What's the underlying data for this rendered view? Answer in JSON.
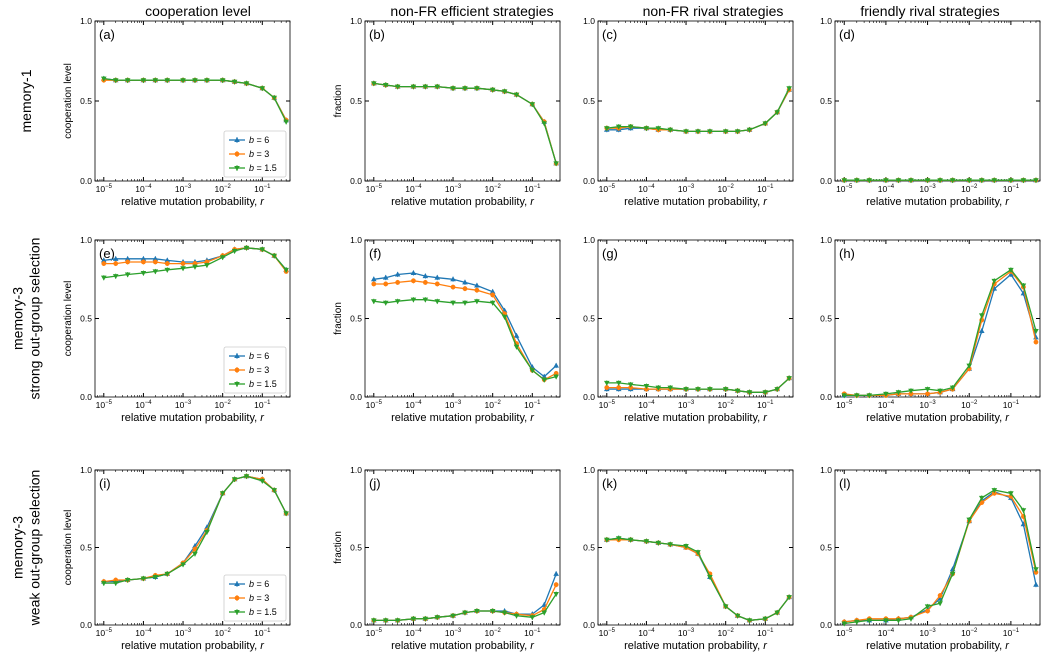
{
  "column_titles": [
    "cooperation level",
    "non-FR efficient strategies",
    "non-FR rival strategies",
    "friendly rival strategies"
  ],
  "row_titles": [
    [
      "memory-1"
    ],
    [
      "memory-3",
      "strong out-group selection"
    ],
    [
      "memory-3",
      "weak out-group selection"
    ]
  ],
  "colors": {
    "b6": "#1f77b4",
    "b3": "#ff7f0e",
    "b15": "#2ca02c"
  },
  "chart_data": {
    "type": "line",
    "xscale": "log",
    "xlabel": "relative mutation probability, r",
    "x": [
      1e-05,
      2e-05,
      4e-05,
      0.0001,
      0.0002,
      0.0004,
      0.001,
      0.002,
      0.004,
      0.01,
      0.02,
      0.04,
      0.1,
      0.2,
      0.4
    ],
    "xlim": [
      6e-06,
      0.5
    ],
    "ylim": [
      0,
      1
    ],
    "xticklabels": [
      "10^-5",
      "10^-4",
      "10^-3",
      "10^-2",
      "10^-1"
    ],
    "yticklabels": [
      "0.0",
      "0.5",
      "1.0"
    ],
    "legend_placement": "lower-right",
    "legend": [
      "b = 6",
      "b = 3",
      "b = 1.5"
    ],
    "panels": [
      {
        "label": "(a)",
        "ylabel": "cooperation level",
        "legend": true,
        "series": [
          {
            "name": "b = 6",
            "values": [
              0.64,
              0.63,
              0.63,
              0.63,
              0.63,
              0.63,
              0.63,
              0.63,
              0.63,
              0.63,
              0.62,
              0.61,
              0.58,
              0.52,
              0.38
            ]
          },
          {
            "name": "b = 3",
            "values": [
              0.63,
              0.63,
              0.63,
              0.63,
              0.63,
              0.63,
              0.63,
              0.63,
              0.63,
              0.63,
              0.62,
              0.61,
              0.58,
              0.52,
              0.38
            ]
          },
          {
            "name": "b = 1.5",
            "values": [
              0.64,
              0.63,
              0.63,
              0.63,
              0.63,
              0.63,
              0.63,
              0.63,
              0.63,
              0.63,
              0.62,
              0.61,
              0.58,
              0.52,
              0.37
            ]
          }
        ]
      },
      {
        "label": "(b)",
        "ylabel": "fraction",
        "series": [
          {
            "name": "b = 6",
            "values": [
              0.61,
              0.6,
              0.59,
              0.59,
              0.59,
              0.59,
              0.58,
              0.58,
              0.58,
              0.57,
              0.56,
              0.54,
              0.48,
              0.37,
              0.11
            ]
          },
          {
            "name": "b = 3",
            "values": [
              0.61,
              0.6,
              0.59,
              0.59,
              0.59,
              0.59,
              0.58,
              0.58,
              0.58,
              0.57,
              0.56,
              0.54,
              0.48,
              0.37,
              0.11
            ]
          },
          {
            "name": "b = 1.5",
            "values": [
              0.61,
              0.6,
              0.59,
              0.59,
              0.59,
              0.59,
              0.58,
              0.58,
              0.58,
              0.57,
              0.56,
              0.54,
              0.48,
              0.36,
              0.11
            ]
          }
        ]
      },
      {
        "label": "(c)",
        "ylabel": "",
        "series": [
          {
            "name": "b = 6",
            "values": [
              0.32,
              0.32,
              0.33,
              0.33,
              0.32,
              0.32,
              0.31,
              0.31,
              0.31,
              0.31,
              0.31,
              0.32,
              0.36,
              0.43,
              0.57
            ]
          },
          {
            "name": "b = 3",
            "values": [
              0.33,
              0.33,
              0.34,
              0.33,
              0.32,
              0.32,
              0.31,
              0.31,
              0.31,
              0.31,
              0.31,
              0.32,
              0.36,
              0.43,
              0.57
            ]
          },
          {
            "name": "b = 1.5",
            "values": [
              0.33,
              0.34,
              0.34,
              0.33,
              0.33,
              0.32,
              0.31,
              0.31,
              0.31,
              0.31,
              0.31,
              0.32,
              0.36,
              0.43,
              0.58
            ]
          }
        ]
      },
      {
        "label": "(d)",
        "ylabel": "",
        "series": [
          {
            "name": "b = 6",
            "values": [
              0.005,
              0.005,
              0.005,
              0.005,
              0.005,
              0.005,
              0.005,
              0.005,
              0.005,
              0.005,
              0.005,
              0.005,
              0.005,
              0.005,
              0.005
            ]
          },
          {
            "name": "b = 3",
            "values": [
              0.005,
              0.005,
              0.005,
              0.005,
              0.005,
              0.005,
              0.005,
              0.005,
              0.005,
              0.005,
              0.005,
              0.005,
              0.005,
              0.005,
              0.005
            ]
          },
          {
            "name": "b = 1.5",
            "values": [
              0.005,
              0.005,
              0.005,
              0.005,
              0.005,
              0.005,
              0.005,
              0.005,
              0.005,
              0.005,
              0.005,
              0.005,
              0.005,
              0.005,
              0.005
            ]
          }
        ]
      },
      {
        "label": "(e)",
        "ylabel": "cooperation level",
        "legend": true,
        "series": [
          {
            "name": "b = 6",
            "values": [
              0.87,
              0.88,
              0.88,
              0.88,
              0.88,
              0.87,
              0.86,
              0.86,
              0.87,
              0.9,
              0.94,
              0.95,
              0.94,
              0.9,
              0.81
            ]
          },
          {
            "name": "b = 3",
            "values": [
              0.85,
              0.85,
              0.86,
              0.86,
              0.86,
              0.85,
              0.85,
              0.85,
              0.86,
              0.9,
              0.94,
              0.95,
              0.94,
              0.9,
              0.8
            ]
          },
          {
            "name": "b = 1.5",
            "values": [
              0.76,
              0.77,
              0.78,
              0.79,
              0.8,
              0.81,
              0.82,
              0.83,
              0.84,
              0.89,
              0.93,
              0.95,
              0.94,
              0.9,
              0.81
            ]
          }
        ]
      },
      {
        "label": "(f)",
        "ylabel": "fraction",
        "series": [
          {
            "name": "b = 6",
            "values": [
              0.75,
              0.76,
              0.78,
              0.79,
              0.77,
              0.76,
              0.75,
              0.73,
              0.71,
              0.67,
              0.55,
              0.39,
              0.19,
              0.13,
              0.2
            ]
          },
          {
            "name": "b = 3",
            "values": [
              0.72,
              0.72,
              0.73,
              0.74,
              0.73,
              0.72,
              0.7,
              0.69,
              0.68,
              0.65,
              0.53,
              0.34,
              0.17,
              0.11,
              0.15
            ]
          },
          {
            "name": "b = 1.5",
            "values": [
              0.61,
              0.6,
              0.61,
              0.62,
              0.62,
              0.61,
              0.6,
              0.6,
              0.61,
              0.6,
              0.51,
              0.32,
              0.17,
              0.11,
              0.13
            ]
          }
        ]
      },
      {
        "label": "(g)",
        "ylabel": "",
        "series": [
          {
            "name": "b = 6",
            "values": [
              0.05,
              0.05,
              0.05,
              0.05,
              0.05,
              0.05,
              0.05,
              0.05,
              0.05,
              0.05,
              0.04,
              0.03,
              0.03,
              0.05,
              0.12
            ]
          },
          {
            "name": "b = 3",
            "values": [
              0.06,
              0.06,
              0.06,
              0.05,
              0.05,
              0.05,
              0.05,
              0.05,
              0.05,
              0.05,
              0.04,
              0.03,
              0.03,
              0.05,
              0.12
            ]
          },
          {
            "name": "b = 1.5",
            "values": [
              0.09,
              0.09,
              0.08,
              0.07,
              0.06,
              0.06,
              0.05,
              0.05,
              0.05,
              0.05,
              0.04,
              0.03,
              0.03,
              0.05,
              0.12
            ]
          }
        ]
      },
      {
        "label": "(h)",
        "ylabel": "",
        "series": [
          {
            "name": "b = 6",
            "values": [
              0.01,
              0.01,
              0.01,
              0.01,
              0.02,
              0.02,
              0.02,
              0.03,
              0.05,
              0.18,
              0.42,
              0.69,
              0.78,
              0.66,
              0.38
            ]
          },
          {
            "name": "b = 3",
            "values": [
              0.02,
              0.01,
              0.01,
              0.01,
              0.02,
              0.02,
              0.02,
              0.03,
              0.05,
              0.18,
              0.49,
              0.72,
              0.8,
              0.7,
              0.35
            ]
          },
          {
            "name": "b = 1.5",
            "values": [
              0.01,
              0.01,
              0.01,
              0.02,
              0.03,
              0.04,
              0.05,
              0.04,
              0.06,
              0.2,
              0.52,
              0.74,
              0.81,
              0.71,
              0.42
            ]
          }
        ]
      },
      {
        "label": "(i)",
        "ylabel": "cooperation level",
        "legend": true,
        "series": [
          {
            "name": "b = 6",
            "values": [
              0.28,
              0.28,
              0.29,
              0.3,
              0.31,
              0.33,
              0.4,
              0.51,
              0.63,
              0.85,
              0.94,
              0.96,
              0.94,
              0.87,
              0.72
            ]
          },
          {
            "name": "b = 3",
            "values": [
              0.28,
              0.29,
              0.29,
              0.3,
              0.32,
              0.33,
              0.4,
              0.49,
              0.61,
              0.85,
              0.94,
              0.96,
              0.94,
              0.87,
              0.72
            ]
          },
          {
            "name": "b = 1.5",
            "values": [
              0.27,
              0.27,
              0.29,
              0.3,
              0.31,
              0.33,
              0.39,
              0.46,
              0.6,
              0.85,
              0.94,
              0.96,
              0.93,
              0.87,
              0.72
            ]
          }
        ]
      },
      {
        "label": "(j)",
        "ylabel": "fraction",
        "series": [
          {
            "name": "b = 6",
            "values": [
              0.03,
              0.03,
              0.03,
              0.04,
              0.04,
              0.05,
              0.06,
              0.08,
              0.09,
              0.09,
              0.09,
              0.07,
              0.07,
              0.13,
              0.33
            ]
          },
          {
            "name": "b = 3",
            "values": [
              0.03,
              0.03,
              0.03,
              0.04,
              0.04,
              0.05,
              0.06,
              0.08,
              0.09,
              0.09,
              0.08,
              0.07,
              0.06,
              0.1,
              0.26
            ]
          },
          {
            "name": "b = 1.5",
            "values": [
              0.03,
              0.03,
              0.03,
              0.04,
              0.04,
              0.05,
              0.06,
              0.08,
              0.09,
              0.09,
              0.08,
              0.06,
              0.05,
              0.08,
              0.2
            ]
          }
        ]
      },
      {
        "label": "(k)",
        "ylabel": "",
        "series": [
          {
            "name": "b = 6",
            "values": [
              0.55,
              0.56,
              0.55,
              0.54,
              0.53,
              0.52,
              0.5,
              0.46,
              0.31,
              0.12,
              0.06,
              0.03,
              0.04,
              0.08,
              0.18
            ]
          },
          {
            "name": "b = 3",
            "values": [
              0.55,
              0.55,
              0.55,
              0.54,
              0.53,
              0.52,
              0.5,
              0.46,
              0.33,
              0.12,
              0.06,
              0.03,
              0.04,
              0.08,
              0.18
            ]
          },
          {
            "name": "b = 1.5",
            "values": [
              0.55,
              0.56,
              0.55,
              0.54,
              0.53,
              0.52,
              0.51,
              0.47,
              0.31,
              0.12,
              0.06,
              0.03,
              0.04,
              0.08,
              0.18
            ]
          }
        ]
      },
      {
        "label": "(l)",
        "ylabel": "",
        "series": [
          {
            "name": "b = 6",
            "values": [
              0.02,
              0.03,
              0.03,
              0.03,
              0.04,
              0.05,
              0.1,
              0.17,
              0.36,
              0.67,
              0.8,
              0.86,
              0.82,
              0.65,
              0.26
            ]
          },
          {
            "name": "b = 3",
            "values": [
              0.02,
              0.03,
              0.04,
              0.04,
              0.04,
              0.05,
              0.09,
              0.19,
              0.33,
              0.67,
              0.79,
              0.85,
              0.83,
              0.7,
              0.34
            ]
          },
          {
            "name": "b = 1.5",
            "values": [
              0.01,
              0.02,
              0.03,
              0.03,
              0.03,
              0.04,
              0.12,
              0.14,
              0.33,
              0.68,
              0.82,
              0.87,
              0.85,
              0.74,
              0.36
            ]
          }
        ]
      }
    ]
  }
}
